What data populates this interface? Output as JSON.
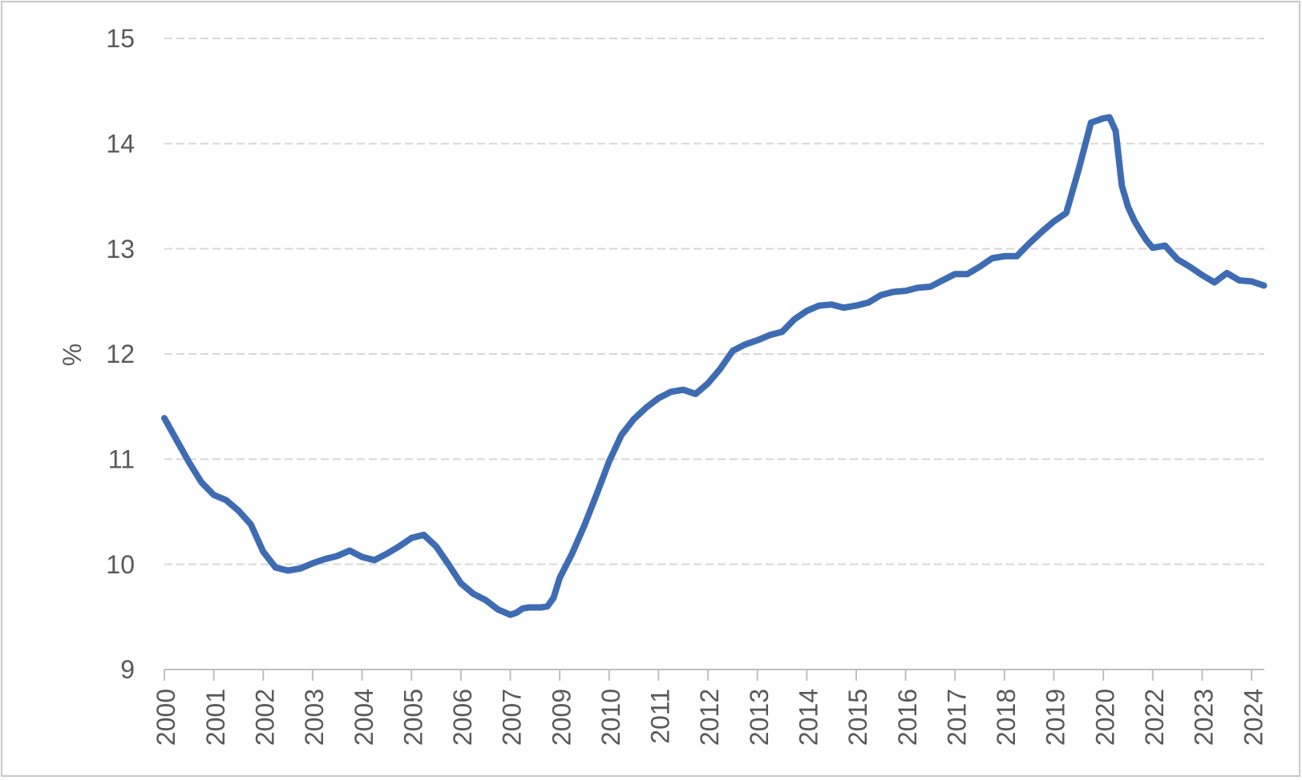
{
  "chart_data": {
    "type": "line",
    "title": "",
    "y_axis_title": "%",
    "y_ticks": [
      9,
      10,
      11,
      12,
      13,
      14,
      15
    ],
    "ylim": [
      9,
      15
    ],
    "grid": "horizontal-dashed",
    "legend": "none",
    "x_tick_labels": [
      "2000",
      "2001",
      "2002",
      "2003",
      "2004",
      "2005",
      "2006",
      "2007",
      "2009",
      "2010",
      "2011",
      "2012",
      "2013",
      "2014",
      "2015",
      "2016",
      "2017",
      "2018",
      "2019",
      "2020",
      "2022",
      "2023",
      "2024"
    ],
    "x_unit": "category tick index (0 = '2000' tick, 1 unit = 1 tick interval)",
    "series": [
      {
        "color": "#3E6CB3",
        "points": [
          [
            0,
            11.39
          ],
          [
            0.25,
            11.18
          ],
          [
            0.5,
            10.97
          ],
          [
            0.75,
            10.78
          ],
          [
            1,
            10.66
          ],
          [
            1.25,
            10.61
          ],
          [
            1.5,
            10.51
          ],
          [
            1.75,
            10.38
          ],
          [
            2,
            10.12
          ],
          [
            2.25,
            9.97
          ],
          [
            2.5,
            9.94
          ],
          [
            2.75,
            9.96
          ],
          [
            3,
            10.01
          ],
          [
            3.25,
            10.05
          ],
          [
            3.5,
            10.08
          ],
          [
            3.75,
            10.13
          ],
          [
            4,
            10.07
          ],
          [
            4.25,
            10.04
          ],
          [
            4.5,
            10.1
          ],
          [
            4.75,
            10.17
          ],
          [
            5,
            10.25
          ],
          [
            5.25,
            10.28
          ],
          [
            5.5,
            10.17
          ],
          [
            5.75,
            10.0
          ],
          [
            6,
            9.82
          ],
          [
            6.25,
            9.72
          ],
          [
            6.5,
            9.66
          ],
          [
            6.75,
            9.57
          ],
          [
            7,
            9.52
          ],
          [
            7.125,
            9.54
          ],
          [
            7.25,
            9.58
          ],
          [
            7.375,
            9.59
          ],
          [
            7.5,
            9.59
          ],
          [
            7.625,
            9.59
          ],
          [
            7.75,
            9.6
          ],
          [
            7.875,
            9.68
          ],
          [
            8,
            9.87
          ],
          [
            8.25,
            10.1
          ],
          [
            8.5,
            10.37
          ],
          [
            8.75,
            10.67
          ],
          [
            9,
            10.98
          ],
          [
            9.25,
            11.23
          ],
          [
            9.5,
            11.38
          ],
          [
            9.75,
            11.49
          ],
          [
            10,
            11.58
          ],
          [
            10.25,
            11.64
          ],
          [
            10.5,
            11.66
          ],
          [
            10.75,
            11.62
          ],
          [
            11,
            11.72
          ],
          [
            11.25,
            11.86
          ],
          [
            11.5,
            12.03
          ],
          [
            11.75,
            12.09
          ],
          [
            12,
            12.13
          ],
          [
            12.25,
            12.18
          ],
          [
            12.5,
            12.21
          ],
          [
            12.75,
            12.33
          ],
          [
            13,
            12.41
          ],
          [
            13.25,
            12.46
          ],
          [
            13.5,
            12.47
          ],
          [
            13.75,
            12.44
          ],
          [
            14,
            12.46
          ],
          [
            14.25,
            12.49
          ],
          [
            14.5,
            12.56
          ],
          [
            14.75,
            12.59
          ],
          [
            15,
            12.6
          ],
          [
            15.25,
            12.63
          ],
          [
            15.5,
            12.64
          ],
          [
            15.75,
            12.7
          ],
          [
            16,
            12.76
          ],
          [
            16.25,
            12.76
          ],
          [
            16.5,
            12.83
          ],
          [
            16.75,
            12.91
          ],
          [
            17,
            12.93
          ],
          [
            17.25,
            12.93
          ],
          [
            17.5,
            13.05
          ],
          [
            17.75,
            13.16
          ],
          [
            18,
            13.26
          ],
          [
            18.25,
            13.34
          ],
          [
            18.5,
            13.75
          ],
          [
            18.75,
            14.2
          ],
          [
            19,
            14.24
          ],
          [
            19.125,
            14.25
          ],
          [
            19.25,
            14.12
          ],
          [
            19.375,
            13.6
          ],
          [
            19.5,
            13.4
          ],
          [
            19.625,
            13.27
          ],
          [
            19.75,
            13.17
          ],
          [
            19.875,
            13.08
          ],
          [
            20,
            13.01
          ],
          [
            20.25,
            13.03
          ],
          [
            20.5,
            12.9
          ],
          [
            20.75,
            12.83
          ],
          [
            21,
            12.75
          ],
          [
            21.25,
            12.68
          ],
          [
            21.5,
            12.77
          ],
          [
            21.75,
            12.7
          ],
          [
            22,
            12.69
          ],
          [
            22.25,
            12.65
          ]
        ]
      }
    ]
  },
  "colors": {
    "line": "#3E6CB3",
    "gridline": "#D7D7D7",
    "axis": "#BFBFBF",
    "tick_text": "#595959",
    "background": "#FFFFFF",
    "border": "#C8C8C8"
  }
}
